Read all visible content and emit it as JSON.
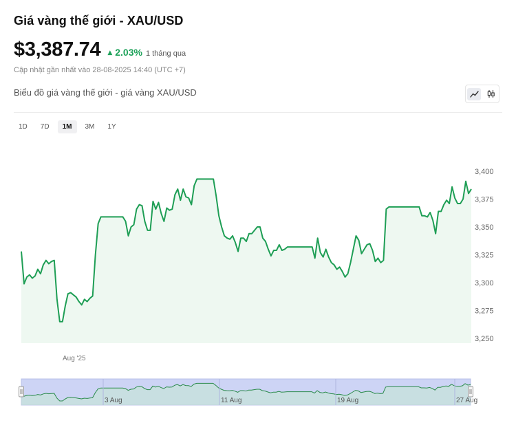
{
  "header": {
    "title": "Giá vàng thế giới - XAU/USD",
    "price": "$3,387.74",
    "change_pct": "2.03%",
    "change_period": "1 tháng qua",
    "updated": "Cập nhật gần nhất vào 28-08-2025 14:40 (UTC +7)"
  },
  "chart_heading": "Biểu đồ giá vàng thế giới - giá vàng XAU/USD",
  "chart_type_toggle": {
    "active": "line",
    "icons": [
      "line-chart-icon",
      "candlestick-icon"
    ]
  },
  "ranges": {
    "items": [
      "1D",
      "7D",
      "1M",
      "3M",
      "1Y"
    ],
    "active": "1M"
  },
  "colors": {
    "line": "#1e9e55",
    "fill": "#eef8f1",
    "up": "#1ea25a",
    "navigator_fill": "#cdd4f5",
    "navigator_line": "#2a8a4a"
  },
  "chart_data": {
    "type": "area",
    "title": "",
    "xlabel": "",
    "ylabel": "",
    "ylim": [
      3250,
      3400
    ],
    "yticks": [
      3250,
      3275,
      3300,
      3325,
      3350,
      3375,
      3400
    ],
    "ytick_labels": [
      "3,250",
      "3,275",
      "3,300",
      "3,325",
      "3,350",
      "3,375",
      "3,400"
    ],
    "xticks": [
      "Aug '25"
    ],
    "navigator_ticks": [
      "3 Aug",
      "11 Aug",
      "19 Aug",
      "27 Aug"
    ],
    "grid": false,
    "series": [
      {
        "values": [
          3328,
          3299,
          3305,
          3307,
          3304,
          3306,
          3312,
          3308,
          3316,
          3320,
          3317,
          3319,
          3320,
          3285,
          3265,
          3265,
          3279,
          3290,
          3291,
          3289,
          3287,
          3283,
          3280,
          3285,
          3283,
          3286,
          3288,
          3325,
          3353,
          3359,
          3359,
          3359,
          3359,
          3359,
          3359,
          3359,
          3359,
          3359,
          3355,
          3342,
          3350,
          3352,
          3366,
          3370,
          3369,
          3355,
          3347,
          3347,
          3373,
          3366,
          3372,
          3362,
          3355,
          3367,
          3365,
          3366,
          3379,
          3384,
          3374,
          3384,
          3377,
          3376,
          3370,
          3387,
          3393,
          3393,
          3393,
          3393,
          3393,
          3393,
          3393,
          3378,
          3360,
          3350,
          3342,
          3340,
          3339,
          3342,
          3336,
          3328,
          3340,
          3340,
          3337,
          3344,
          3344,
          3347,
          3350,
          3350,
          3340,
          3337,
          3330,
          3324,
          3329,
          3329,
          3334,
          3329,
          3330,
          3332,
          3332,
          3332,
          3332,
          3332,
          3332,
          3332,
          3332,
          3332,
          3332,
          3322,
          3340,
          3327,
          3323,
          3330,
          3323,
          3318,
          3316,
          3312,
          3314,
          3310,
          3305,
          3308,
          3318,
          3330,
          3342,
          3338,
          3326,
          3330,
          3334,
          3335,
          3329,
          3319,
          3322,
          3318,
          3320,
          3366,
          3368,
          3368,
          3368,
          3368,
          3368,
          3368,
          3368,
          3368,
          3368,
          3368,
          3368,
          3368,
          3360,
          3360,
          3359,
          3363,
          3356,
          3344,
          3364,
          3364,
          3370,
          3374,
          3371,
          3386,
          3376,
          3371,
          3371,
          3375,
          3391,
          3380,
          3384
        ]
      }
    ]
  }
}
